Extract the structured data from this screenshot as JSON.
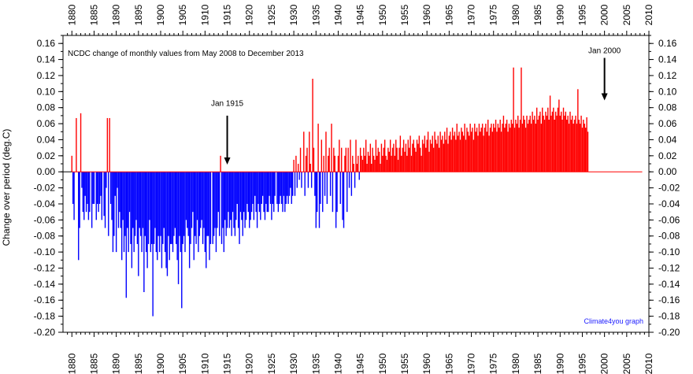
{
  "chart_data": {
    "type": "bar",
    "title": "NCDC change of monthly values from May 2008 to December 2013",
    "ylabel": "Change over period (deg.C)",
    "xlabel": "",
    "credit": "Climate4you graph",
    "xlim": [
      1878,
      2010
    ],
    "ylim": [
      -0.2,
      0.17
    ],
    "x_ticks": [
      1880,
      1885,
      1890,
      1895,
      1900,
      1905,
      1910,
      1915,
      1920,
      1925,
      1930,
      1935,
      1940,
      1945,
      1950,
      1955,
      1960,
      1965,
      1970,
      1975,
      1980,
      1985,
      1990,
      1995,
      2000,
      2005,
      2010
    ],
    "y_ticks": [
      "0.16",
      "0.14",
      "0.12",
      "0.10",
      "0.08",
      "0.06",
      "0.04",
      "0.02",
      "0.00",
      "-0.02",
      "-0.04",
      "-0.06",
      "-0.08",
      "-0.10",
      "-0.12",
      "-0.14",
      "-0.16",
      "-0.18",
      "-0.20"
    ],
    "grid": false,
    "colors": {
      "positive": "#ff0000",
      "negative": "#0000ff",
      "axis": "#000000",
      "credit": "#1a1aff"
    },
    "annotations": [
      {
        "text": "Jan 1915",
        "x": 1915.0
      },
      {
        "text": "Jan 2000",
        "x": 2000.0
      }
    ],
    "series": [
      {
        "time_start": 1880.0,
        "step": 0.25,
        "values": [
          0.02,
          -0.04,
          -0.06,
          0.0,
          0.067,
          0.0,
          -0.11,
          -0.07,
          0.073,
          -0.02,
          -0.05,
          -0.06,
          -0.03,
          -0.05,
          -0.04,
          -0.06,
          -0.05,
          0.0,
          -0.07,
          -0.04,
          -0.04,
          0.0,
          -0.06,
          -0.04,
          -0.05,
          -0.04,
          -0.03,
          -0.06,
          0.0,
          -0.055,
          -0.07,
          -0.02,
          0.067,
          -0.08,
          0.067,
          -0.04,
          -0.06,
          -0.1,
          -0.08,
          -0.03,
          -0.1,
          -0.02,
          -0.07,
          -0.05,
          -0.07,
          -0.11,
          -0.06,
          -0.1,
          -0.08,
          -0.157,
          -0.07,
          -0.1,
          -0.05,
          -0.09,
          -0.12,
          -0.07,
          -0.1,
          -0.08,
          -0.06,
          -0.09,
          -0.13,
          -0.07,
          -0.08,
          -0.1,
          -0.07,
          -0.15,
          -0.08,
          -0.1,
          -0.12,
          -0.09,
          -0.06,
          -0.1,
          -0.09,
          -0.18,
          -0.09,
          -0.07,
          -0.1,
          -0.11,
          -0.08,
          -0.1,
          -0.08,
          -0.12,
          -0.09,
          -0.07,
          -0.1,
          -0.12,
          -0.13,
          -0.08,
          -0.11,
          -0.09,
          -0.09,
          -0.1,
          -0.08,
          -0.07,
          -0.09,
          -0.11,
          -0.14,
          -0.08,
          -0.1,
          -0.17,
          -0.09,
          -0.08,
          -0.1,
          -0.06,
          -0.07,
          -0.08,
          -0.12,
          -0.09,
          -0.07,
          -0.05,
          -0.11,
          -0.08,
          -0.09,
          -0.06,
          -0.1,
          -0.08,
          -0.07,
          -0.06,
          -0.09,
          -0.07,
          -0.1,
          -0.12,
          -0.08,
          -0.08,
          -0.11,
          -0.09,
          0.0,
          -0.09,
          -0.08,
          -0.07,
          -0.1,
          -0.07,
          -0.05,
          -0.08,
          0.02,
          -0.09,
          -0.07,
          -0.1,
          -0.06,
          -0.08,
          -0.07,
          -0.05,
          -0.07,
          -0.06,
          -0.08,
          -0.05,
          -0.07,
          -0.08,
          -0.06,
          -0.04,
          -0.07,
          -0.09,
          -0.05,
          -0.06,
          -0.08,
          -0.05,
          -0.07,
          -0.06,
          -0.04,
          -0.05,
          -0.07,
          -0.06,
          -0.05,
          -0.04,
          -0.06,
          -0.03,
          -0.05,
          -0.07,
          -0.04,
          -0.05,
          -0.06,
          -0.04,
          -0.03,
          -0.05,
          -0.06,
          -0.04,
          -0.05,
          -0.05,
          -0.03,
          -0.04,
          -0.06,
          -0.04,
          -0.05,
          -0.03,
          0.0,
          -0.04,
          -0.05,
          -0.04,
          -0.03,
          -0.04,
          -0.05,
          -0.03,
          -0.05,
          -0.04,
          -0.03,
          -0.04,
          -0.03,
          -0.02,
          -0.04,
          -0.03,
          0.015,
          -0.03,
          0.02,
          -0.02,
          0.01,
          -0.01,
          0.03,
          -0.02,
          0.0,
          0.05,
          -0.03,
          0.02,
          0.03,
          -0.02,
          0.05,
          0.01,
          -0.02,
          0.116,
          0.03,
          -0.03,
          -0.07,
          -0.05,
          0.06,
          -0.07,
          -0.04,
          0.04,
          -0.05,
          0.02,
          -0.03,
          0.05,
          -0.04,
          0.02,
          0.03,
          -0.03,
          0.06,
          -0.05,
          0.03,
          0.02,
          -0.07,
          -0.05,
          0.02,
          0.04,
          -0.04,
          0.03,
          -0.06,
          -0.07,
          0.02,
          0.03,
          -0.05,
          0.03,
          -0.02,
          0.04,
          -0.03,
          0.02,
          0.01,
          -0.02,
          0.04,
          0.01,
          0.02,
          -0.01,
          0.03,
          0.02,
          0.015,
          0.03,
          0.02,
          0.04,
          0.01,
          0.025,
          0.02,
          0.035,
          0.01,
          0.03,
          0.02,
          0.015,
          0.04,
          0.02,
          0.03,
          0.025,
          0.01,
          0.035,
          0.02,
          0.03,
          0.04,
          0.02,
          0.015,
          0.03,
          0.025,
          0.04,
          0.02,
          0.03,
          0.035,
          0.02,
          0.04,
          0.03,
          0.015,
          0.03,
          0.045,
          0.02,
          0.03,
          0.04,
          0.025,
          0.035,
          0.02,
          0.04,
          0.03,
          0.045,
          0.02,
          0.035,
          0.04,
          0.03,
          0.025,
          0.04,
          0.035,
          0.045,
          0.03,
          0.02,
          0.04,
          0.035,
          0.045,
          0.03,
          0.04,
          0.05,
          0.025,
          0.04,
          0.035,
          0.045,
          0.03,
          0.05,
          0.04,
          0.035,
          0.045,
          0.03,
          0.05,
          0.04,
          0.045,
          0.035,
          0.05,
          0.04,
          0.055,
          0.035,
          0.045,
          0.05,
          0.04,
          0.055,
          0.045,
          0.05,
          0.04,
          0.06,
          0.045,
          0.05,
          0.04,
          0.055,
          0.05,
          0.045,
          0.06,
          0.04,
          0.055,
          0.05,
          0.045,
          0.06,
          0.05,
          0.055,
          0.04,
          0.06,
          0.05,
          0.055,
          0.045,
          0.06,
          0.05,
          0.055,
          0.06,
          0.045,
          0.055,
          0.06,
          0.05,
          0.065,
          0.045,
          0.055,
          0.06,
          0.05,
          0.06,
          0.055,
          0.065,
          0.05,
          0.06,
          0.055,
          0.065,
          0.05,
          0.06,
          0.07,
          0.055,
          0.06,
          0.065,
          0.05,
          0.06,
          0.055,
          0.065,
          0.06,
          0.13,
          0.055,
          0.065,
          0.06,
          0.07,
          0.055,
          0.065,
          0.13,
          0.06,
          0.07,
          0.065,
          0.055,
          0.07,
          0.06,
          0.065,
          0.07,
          0.06,
          0.075,
          0.065,
          0.07,
          0.06,
          0.08,
          0.065,
          0.07,
          0.075,
          0.06,
          0.08,
          0.07,
          0.065,
          0.075,
          0.07,
          0.08,
          0.065,
          0.095,
          0.07,
          0.075,
          0.08,
          0.065,
          0.075,
          0.07,
          0.08,
          0.09,
          0.07,
          0.075,
          0.065,
          0.08,
          0.07,
          0.075,
          0.065,
          0.07,
          0.06,
          0.075,
          0.065,
          0.07,
          0.06,
          0.065,
          0.07,
          0.06,
          0.103,
          0.065,
          0.06,
          0.07,
          0.055,
          0.065,
          0.06,
          0.055,
          0.068,
          0.05
        ]
      }
    ]
  }
}
